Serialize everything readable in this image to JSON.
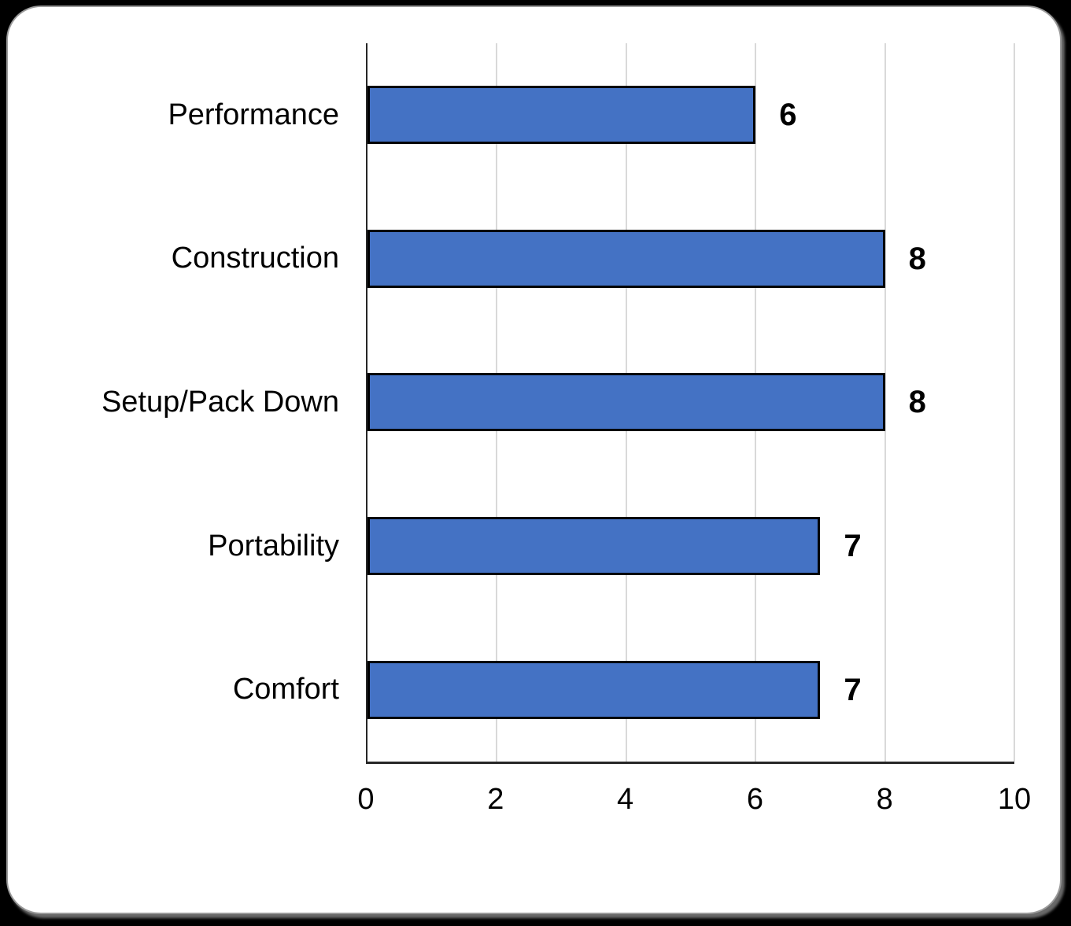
{
  "chart_data": {
    "type": "bar",
    "orientation": "horizontal",
    "title": "",
    "xlabel": "",
    "ylabel": "",
    "categories": [
      "Performance",
      "Construction",
      "Setup/Pack Down",
      "Portability",
      "Comfort"
    ],
    "values": [
      6,
      8,
      8,
      7,
      7
    ],
    "data_labels": [
      "6",
      "8",
      "8",
      "7",
      "7"
    ],
    "xlim": [
      0,
      10
    ],
    "x_ticks": [
      0,
      2,
      4,
      6,
      8,
      10
    ],
    "grid": "vertical-only",
    "legend": "none",
    "colors": {
      "bar_fill": "#4472C4",
      "bar_border": "#000000",
      "gridline": "#d9d9d9",
      "axis_line": "#262626",
      "label_text": "#000000",
      "plot_background": "#ffffff",
      "page_background": "#000000"
    }
  }
}
